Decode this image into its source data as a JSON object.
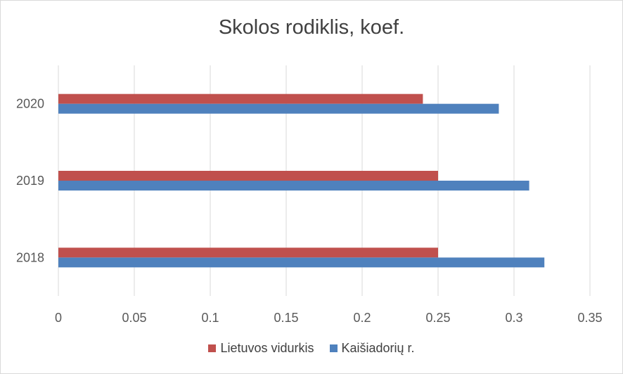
{
  "chart_data": {
    "type": "bar",
    "orientation": "horizontal",
    "title": "Skolos rodiklis, koef.",
    "categories": [
      "2018",
      "2019",
      "2020"
    ],
    "series": [
      {
        "name": "Lietuvos vidurkis",
        "color": "#c0504d",
        "values": [
          0.25,
          0.25,
          0.24
        ]
      },
      {
        "name": "Kaišiadorių r.",
        "color": "#4f81bd",
        "values": [
          0.32,
          0.31,
          0.29
        ]
      }
    ],
    "xlim": [
      0,
      0.35
    ],
    "x_ticks": [
      "0",
      "0.05",
      "0.1",
      "0.15",
      "0.2",
      "0.25",
      "0.3",
      "0.35"
    ],
    "grid": "vertical",
    "legend_position": "bottom"
  }
}
